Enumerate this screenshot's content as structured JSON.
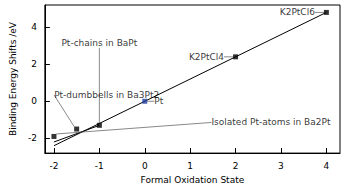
{
  "chart_data": {
    "type": "scatter",
    "x_label": "Formal Oxidation State",
    "y_label": "Binding Energy Shifts /eV",
    "xlim": [
      -2.2,
      4.3
    ],
    "ylim": [
      -2.8,
      5.2
    ],
    "xticks": [
      -2,
      -1,
      0,
      1,
      2,
      3,
      4
    ],
    "yticks": [
      -2,
      0,
      2,
      4
    ],
    "grid": false,
    "marker": "square",
    "line_style": "solid",
    "points": [
      {
        "x": -2,
        "y": -1.9,
        "label": "Isolated Pt-atoms in Ba2Pt",
        "color": "#000000"
      },
      {
        "x": -1.5,
        "y": -1.5,
        "label": "Pt-dumbbells in Ba3Pt2",
        "color": "#000000"
      },
      {
        "x": -1,
        "y": -1.3,
        "label": "Pt-chains in BaPt",
        "color": "#000000"
      },
      {
        "x": 0,
        "y": 0,
        "label": "Pt",
        "color": "#1f3f9f"
      },
      {
        "x": 2,
        "y": 2.4,
        "label": "K2PtCl4",
        "color": "#000000"
      },
      {
        "x": 4,
        "y": 4.8,
        "label": "K2PtCl6",
        "color": "#000000"
      }
    ],
    "lines": [
      {
        "x": [
          -2,
          4
        ],
        "y": [
          -2.4,
          4.8
        ],
        "color": "#000000"
      },
      {
        "x": [
          -2,
          -1
        ],
        "y": [
          -2.2,
          -1.3
        ],
        "color": "#000000"
      }
    ]
  }
}
